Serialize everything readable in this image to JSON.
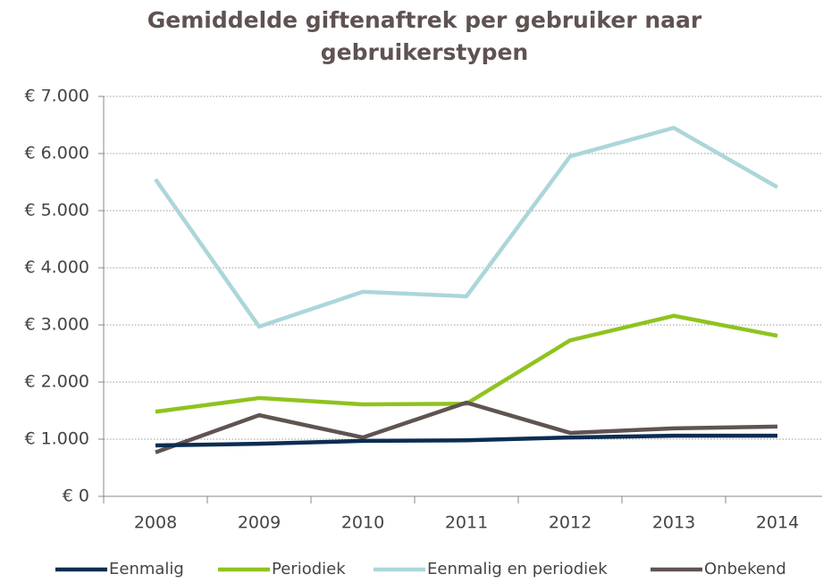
{
  "chart_data": {
    "type": "line",
    "title": [
      "Gemiddelde giftenaftrek per gebruiker naar",
      "gebruikerstypen"
    ],
    "categories": [
      "2008",
      "2009",
      "2010",
      "2011",
      "2012",
      "2013",
      "2014"
    ],
    "series": [
      {
        "name": "Eenmalig",
        "color": "#0b2d52",
        "values": [
          890,
          920,
          970,
          980,
          1030,
          1060,
          1060
        ]
      },
      {
        "name": "Periodiek",
        "color": "#8fc31f",
        "values": [
          1480,
          1720,
          1610,
          1620,
          2730,
          3160,
          2810
        ]
      },
      {
        "name": "Eenmalig en periodiek",
        "color": "#acd6d9",
        "values": [
          5550,
          2970,
          3580,
          3500,
          5950,
          6450,
          5410
        ]
      },
      {
        "name": "Onbekend",
        "color": "#605352",
        "values": [
          770,
          1420,
          1030,
          1640,
          1110,
          1190,
          1220
        ]
      }
    ],
    "ylim": [
      0,
      7000
    ],
    "yticks": [
      {
        "value": 0,
        "label": "€ 0"
      },
      {
        "value": 1000,
        "label": "€ 1.000"
      },
      {
        "value": 2000,
        "label": "€ 2.000"
      },
      {
        "value": 3000,
        "label": "€ 3.000"
      },
      {
        "value": 4000,
        "label": "€ 4.000"
      },
      {
        "value": 5000,
        "label": "€ 5.000"
      },
      {
        "value": 6000,
        "label": "€ 6.000"
      },
      {
        "value": 7000,
        "label": "€ 7.000"
      }
    ],
    "grid": true,
    "legend": "bottom"
  }
}
